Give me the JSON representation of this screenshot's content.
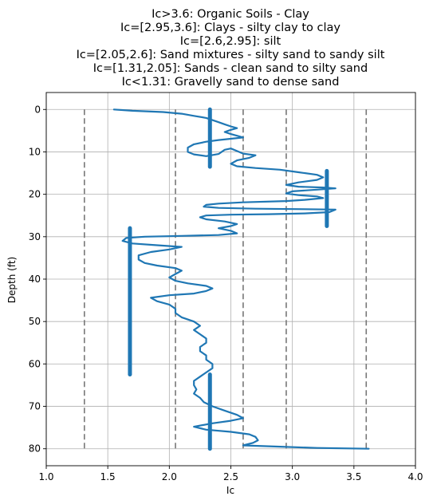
{
  "chart_data": {
    "type": "scatter",
    "title_lines": [
      "Ic>3.6: Organic Soils - Clay",
      "Ic=[2.95,3.6]: Clays - silty clay to clay",
      "Ic=[2.6,2.95]: silt",
      "Ic=[2.05,2.6]: Sand mixtures - silty sand to sandy silt",
      "Ic=[1.31,2.05]: Sands - clean sand to silty sand",
      "Ic<1.31: Gravelly sand to dense sand"
    ],
    "xlabel": "Ic",
    "ylabel": "Depth (ft)",
    "xlim": [
      1.0,
      4.0
    ],
    "ylim": [
      84,
      -4
    ],
    "y_inverted": true,
    "xticks": [
      1.0,
      1.5,
      2.0,
      2.5,
      3.0,
      3.5,
      4.0
    ],
    "xtick_labels": [
      "1.0",
      "1.5",
      "2.0",
      "2.5",
      "3.0",
      "3.5",
      "4.0"
    ],
    "yticks": [
      0,
      10,
      20,
      30,
      40,
      50,
      60,
      70,
      80
    ],
    "ytick_labels": [
      "0",
      "10",
      "20",
      "30",
      "40",
      "50",
      "60",
      "70",
      "80"
    ],
    "grid": true,
    "colors": {
      "series": "#1f77b4",
      "thresholds": "#777777",
      "grid": "#b0b0b0"
    },
    "thresholds": {
      "x": [
        1.31,
        2.05,
        2.6,
        2.95,
        3.6
      ],
      "depth_range": [
        0,
        80
      ]
    },
    "series": [
      {
        "points": [
          [
            1.55,
            0.0
          ],
          [
            1.7,
            0.3
          ],
          [
            1.95,
            0.6
          ],
          [
            2.1,
            1.0
          ],
          [
            2.2,
            1.5
          ],
          [
            2.3,
            2.0
          ],
          [
            2.35,
            2.5
          ],
          [
            2.4,
            3.0
          ],
          [
            2.45,
            3.5
          ],
          [
            2.5,
            4.0
          ],
          [
            2.55,
            4.4
          ],
          [
            2.5,
            4.8
          ],
          [
            2.45,
            5.3
          ],
          [
            2.5,
            5.8
          ],
          [
            2.55,
            6.2
          ],
          [
            2.6,
            6.6
          ],
          [
            2.5,
            6.9
          ],
          [
            2.4,
            7.2
          ],
          [
            2.3,
            7.6
          ],
          [
            2.2,
            8.2
          ],
          [
            2.15,
            9.0
          ],
          [
            2.15,
            10.0
          ],
          [
            2.2,
            10.6
          ],
          [
            2.3,
            11.0
          ],
          [
            2.4,
            10.5
          ],
          [
            2.45,
            9.5
          ],
          [
            2.5,
            9.2
          ],
          [
            2.55,
            9.8
          ],
          [
            2.6,
            10.4
          ],
          [
            2.7,
            10.8
          ],
          [
            2.65,
            11.4
          ],
          [
            2.55,
            12.0
          ],
          [
            2.5,
            12.8
          ],
          [
            2.55,
            13.4
          ],
          [
            2.7,
            13.8
          ],
          [
            2.9,
            14.2
          ],
          [
            3.05,
            14.8
          ],
          [
            3.2,
            15.4
          ],
          [
            3.25,
            16.0
          ],
          [
            3.2,
            16.6
          ],
          [
            3.05,
            17.2
          ],
          [
            2.95,
            17.8
          ],
          [
            3.05,
            18.2
          ],
          [
            3.25,
            18.4
          ],
          [
            3.35,
            18.6
          ],
          [
            3.2,
            18.9
          ],
          [
            3.0,
            19.3
          ],
          [
            2.95,
            19.8
          ],
          [
            3.05,
            20.2
          ],
          [
            3.2,
            20.5
          ],
          [
            3.25,
            20.9
          ],
          [
            3.1,
            21.3
          ],
          [
            2.95,
            21.6
          ],
          [
            2.6,
            21.9
          ],
          [
            2.4,
            22.2
          ],
          [
            2.3,
            22.5
          ],
          [
            2.28,
            22.9
          ],
          [
            2.4,
            23.2
          ],
          [
            2.7,
            23.4
          ],
          [
            3.1,
            23.5
          ],
          [
            3.35,
            23.6
          ],
          [
            3.3,
            24.2
          ],
          [
            3.1,
            24.5
          ],
          [
            2.8,
            24.7
          ],
          [
            2.5,
            24.8
          ],
          [
            2.3,
            25.0
          ],
          [
            2.25,
            25.4
          ],
          [
            2.3,
            25.9
          ],
          [
            2.45,
            26.4
          ],
          [
            2.55,
            27.0
          ],
          [
            2.5,
            27.5
          ],
          [
            2.4,
            28.0
          ],
          [
            2.5,
            28.6
          ],
          [
            2.55,
            29.2
          ],
          [
            2.4,
            29.6
          ],
          [
            2.1,
            29.8
          ],
          [
            1.8,
            30.0
          ],
          [
            1.65,
            30.3
          ],
          [
            1.62,
            31.0
          ],
          [
            1.7,
            31.6
          ],
          [
            1.9,
            32.0
          ],
          [
            2.1,
            32.4
          ],
          [
            2.0,
            33.0
          ],
          [
            1.85,
            33.6
          ],
          [
            1.75,
            34.4
          ],
          [
            1.75,
            35.4
          ],
          [
            1.8,
            36.2
          ],
          [
            1.9,
            36.8
          ],
          [
            2.05,
            37.4
          ],
          [
            2.1,
            38.0
          ],
          [
            2.05,
            38.8
          ],
          [
            2.0,
            39.6
          ],
          [
            2.05,
            40.4
          ],
          [
            2.15,
            41.0
          ],
          [
            2.3,
            41.6
          ],
          [
            2.35,
            42.2
          ],
          [
            2.3,
            42.8
          ],
          [
            2.2,
            43.4
          ],
          [
            2.0,
            43.8
          ],
          [
            1.85,
            44.4
          ],
          [
            1.9,
            45.2
          ],
          [
            2.0,
            46.0
          ],
          [
            2.05,
            47.0
          ],
          [
            2.05,
            48.0
          ],
          [
            2.1,
            49.0
          ],
          [
            2.2,
            50.0
          ],
          [
            2.25,
            51.0
          ],
          [
            2.2,
            52.0
          ],
          [
            2.25,
            53.0
          ],
          [
            2.3,
            54.0
          ],
          [
            2.3,
            55.0
          ],
          [
            2.25,
            56.0
          ],
          [
            2.25,
            57.0
          ],
          [
            2.3,
            58.0
          ],
          [
            2.3,
            59.0
          ],
          [
            2.35,
            60.0
          ],
          [
            2.35,
            61.0
          ],
          [
            2.3,
            62.0
          ],
          [
            2.25,
            63.0
          ],
          [
            2.2,
            64.0
          ],
          [
            2.2,
            65.0
          ],
          [
            2.22,
            66.0
          ],
          [
            2.2,
            67.0
          ],
          [
            2.25,
            68.0
          ],
          [
            2.28,
            69.0
          ],
          [
            2.35,
            70.0
          ],
          [
            2.45,
            71.0
          ],
          [
            2.55,
            72.0
          ],
          [
            2.6,
            72.8
          ],
          [
            2.5,
            73.4
          ],
          [
            2.35,
            74.0
          ],
          [
            2.2,
            74.8
          ],
          [
            2.3,
            75.5
          ],
          [
            2.5,
            76.0
          ],
          [
            2.65,
            76.6
          ],
          [
            2.7,
            77.2
          ],
          [
            2.72,
            78.0
          ],
          [
            2.68,
            78.6
          ],
          [
            2.6,
            79.2
          ],
          [
            2.9,
            79.5
          ],
          [
            3.2,
            79.8
          ],
          [
            3.62,
            80.0
          ]
        ]
      }
    ],
    "class_markers": [
      {
        "ic": 2.33,
        "depth_range": [
          0,
          13.5
        ]
      },
      {
        "ic": 3.28,
        "depth_range": [
          14.5,
          27.5
        ]
      },
      {
        "ic": 1.68,
        "depth_range": [
          28,
          62.5
        ]
      },
      {
        "ic": 2.33,
        "depth_range": [
          62.5,
          80
        ]
      }
    ]
  }
}
